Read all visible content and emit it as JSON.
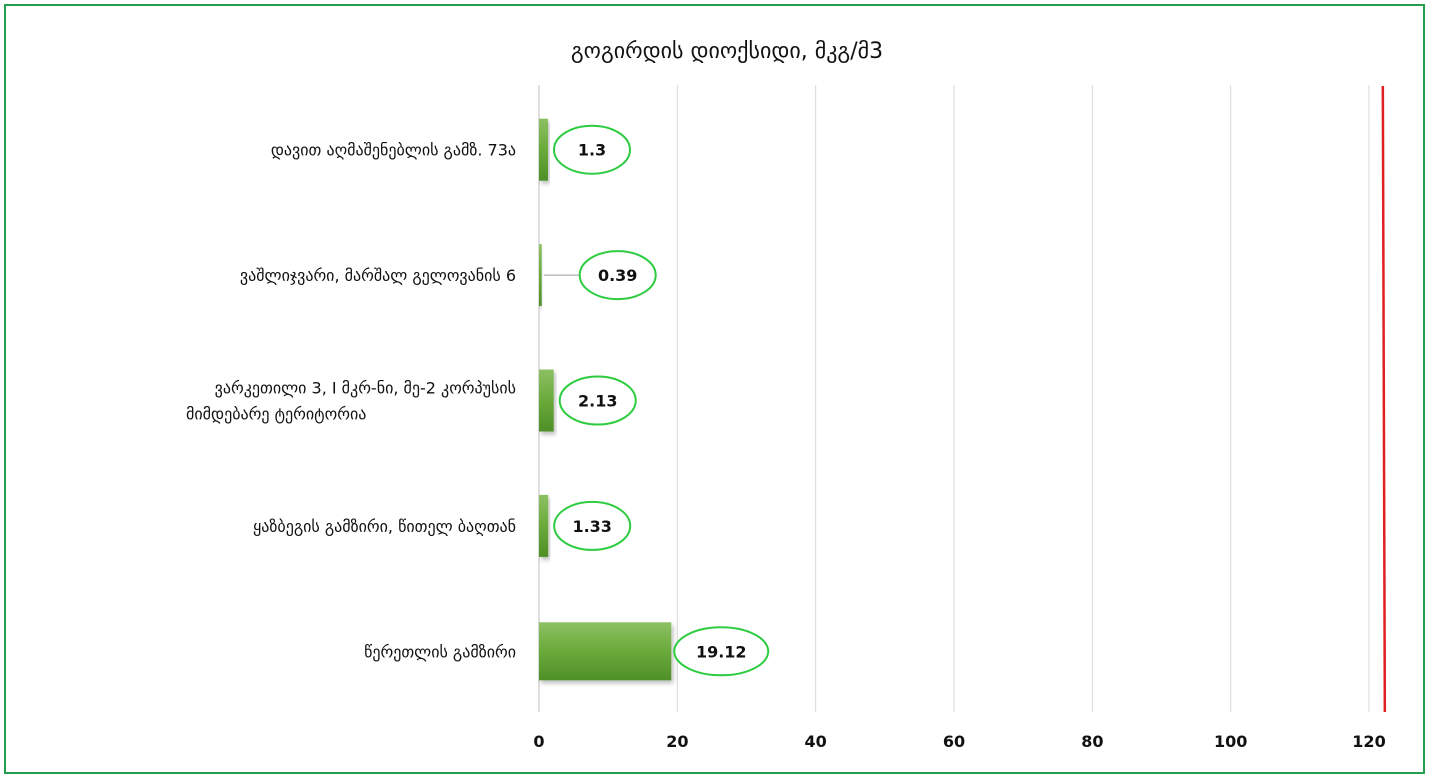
{
  "chart_data": {
    "type": "bar",
    "orientation": "horizontal",
    "title": "გოგირდის დიოქსიდი, მკგ/მ3",
    "categories": [
      "დავით აღმაშენებლის გამზ. 73ა",
      "ვაშლიჯვარი, მარშალ გელოვანის 6",
      "ვარკეთილი 3, I მკრ-ნი, მე-2 კორპუსის მიმდებარე ტერიტორია",
      "ყაზბეგის გამზირი, წითელ ბაღთან",
      "წერეთლის გამზირი"
    ],
    "category_lines": [
      [
        "დავით აღმაშენებლის გამზ. 73ა"
      ],
      [
        "ვაშლიჯვარი, მარშალ გელოვანის 6"
      ],
      [
        "ვარკეთილი 3, I მკრ-ნი, მე-2 კორპუსის",
        "მიმდებარე ტერიტორია"
      ],
      [
        "ყაზბეგის გამზირი, წითელ ბაღთან"
      ],
      [
        "წერეთლის გამზირი"
      ]
    ],
    "values": [
      1.3,
      0.39,
      2.13,
      1.33,
      19.12
    ],
    "data_labels": [
      "1.3",
      "0.39",
      "2.13",
      "1.33",
      "19.12"
    ],
    "xlim": [
      0,
      120
    ],
    "xticks": [
      "0",
      "20",
      "40",
      "60",
      "80",
      "100",
      "120"
    ],
    "reference_line": {
      "value": 122,
      "color": "#e02020"
    },
    "grid": true,
    "bar_color": "#6aaa3a",
    "label_ellipse_color": "#2ecc40",
    "frame_color": "#22a050"
  }
}
